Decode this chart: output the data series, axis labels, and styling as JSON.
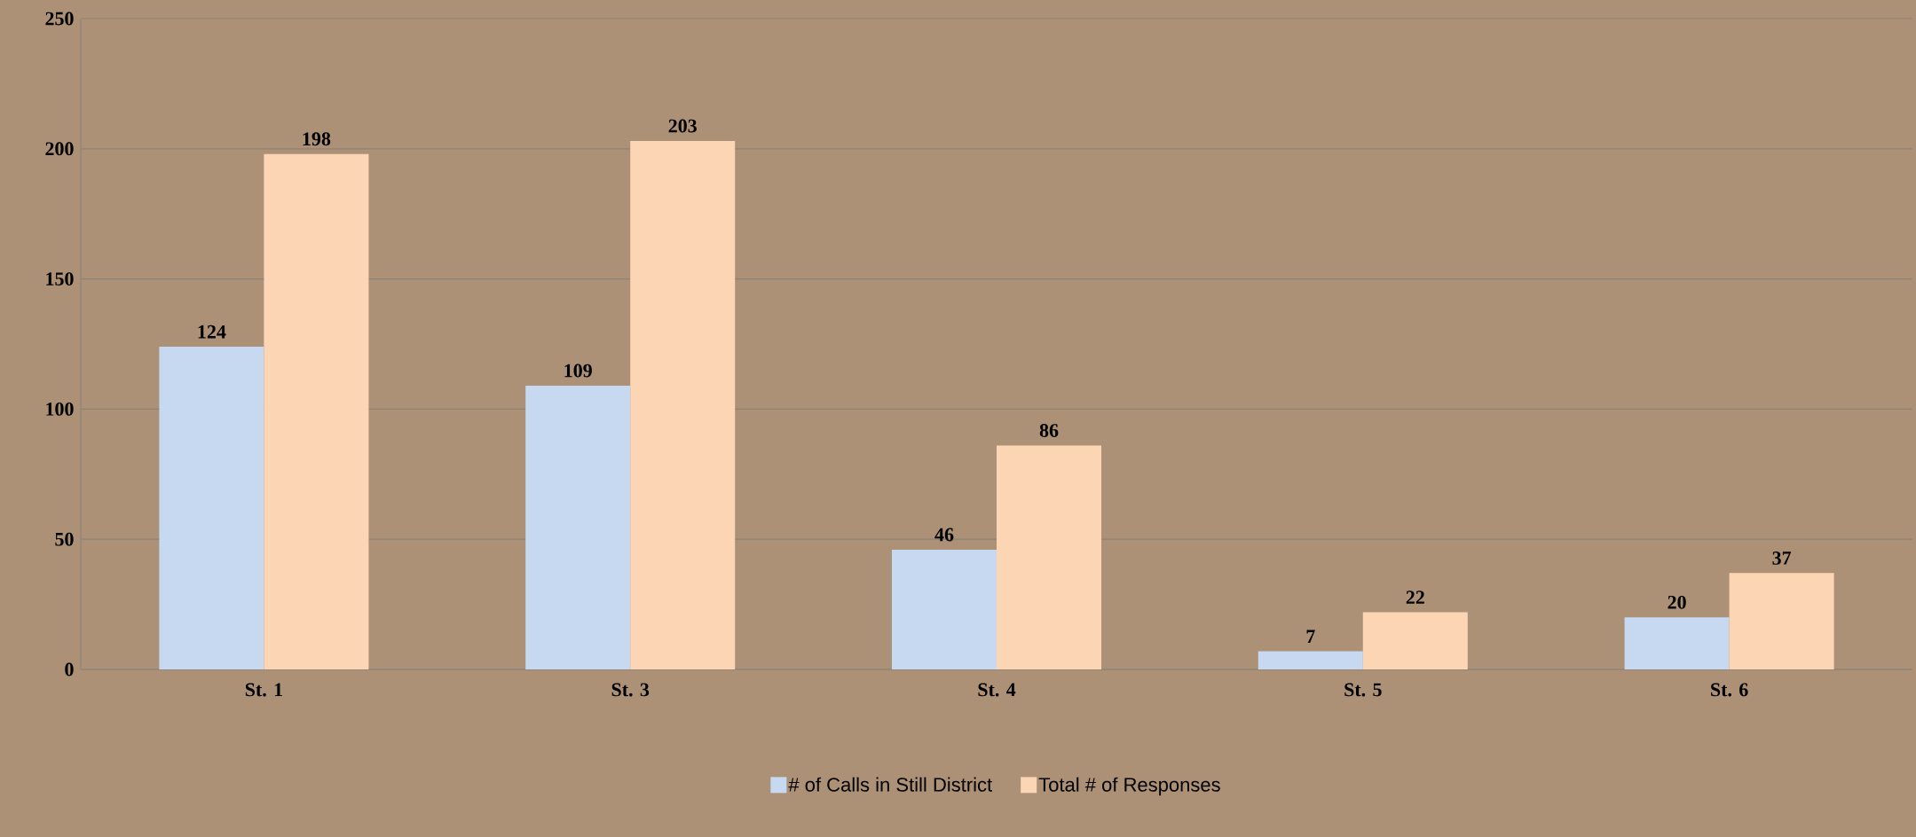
{
  "chart_data": {
    "type": "bar",
    "categories": [
      "St. 1",
      "St. 3",
      "St. 4",
      "St. 5",
      "St. 6"
    ],
    "series": [
      {
        "name": "# of Calls in Still District",
        "color": "#c6d9f1",
        "values": [
          124,
          109,
          46,
          7,
          20
        ]
      },
      {
        "name": "Total # of Responses",
        "color": "#fcd5b5",
        "values": [
          198,
          203,
          86,
          22,
          37
        ]
      }
    ],
    "ylim": [
      0,
      250
    ],
    "yticks": [
      0,
      50,
      100,
      150,
      200,
      250
    ],
    "grid": "y",
    "legend": "bottom",
    "data_labels": true
  }
}
